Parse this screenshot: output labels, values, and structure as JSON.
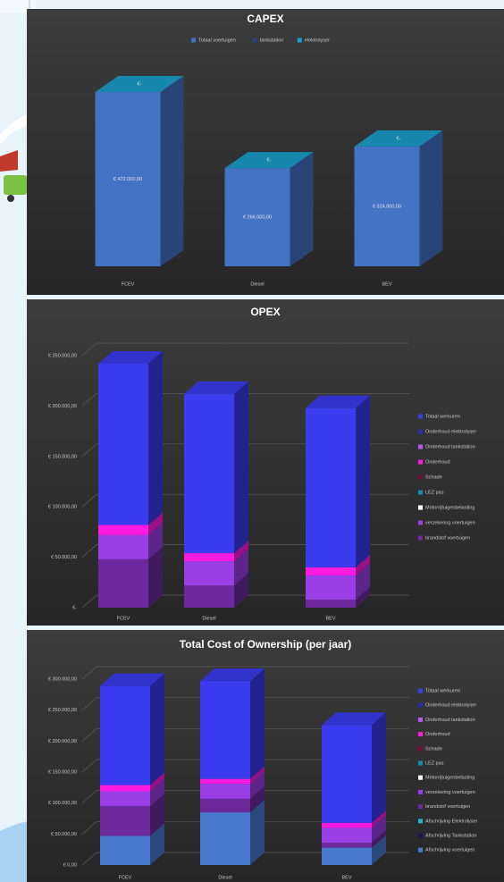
{
  "chart_data": [
    {
      "type": "bar",
      "stacked": true,
      "title": "CAPEX",
      "legend": "top",
      "categories": [
        "FCEV",
        "Diesel",
        "BEV"
      ],
      "series": [
        {
          "name": "Totaal voertuigen",
          "color": "#4472c4",
          "values": [
            472000,
            266000,
            324800
          ],
          "value_labels": [
            "€ 472.000,00",
            "€ 266.000,00",
            "€ 324.800,00"
          ]
        },
        {
          "name": "tankstation",
          "color": "#2b3f80",
          "values": [
            0,
            0,
            0
          ],
          "value_labels": [
            "€-",
            "€-",
            "€-"
          ]
        },
        {
          "name": "elektrolyser",
          "color": "#1ba0cc",
          "values": [
            0,
            0,
            0
          ]
        }
      ]
    },
    {
      "type": "bar",
      "stacked": true,
      "title": "OPEX",
      "legend": "right",
      "grid": true,
      "categories": [
        "FCEV",
        "Diesel",
        "BEV"
      ],
      "ylim": [
        0,
        250000
      ],
      "yticks": [
        {
          "value": 0,
          "label": "€-"
        },
        {
          "value": 50000,
          "label": "€ 50.000,00"
        },
        {
          "value": 100000,
          "label": "€ 100.000,00"
        },
        {
          "value": 150000,
          "label": "€ 150.000,00"
        },
        {
          "value": 200000,
          "label": "€ 200.000,00"
        },
        {
          "value": 250000,
          "label": "€ 250.000,00"
        }
      ],
      "series": [
        {
          "name": "brandstof voertuigen",
          "color": "#6c2a9e",
          "values": [
            48000,
            22000,
            8000
          ]
        },
        {
          "name": "verzekering voertuigen",
          "color": "#9a3ee6",
          "values": [
            24000,
            24000,
            24000
          ]
        },
        {
          "name": "Motorrijtuigenbelasting",
          "color": "#ffffff",
          "values": [
            0,
            0,
            0
          ]
        },
        {
          "name": "LEZ pas",
          "color": "#1a8ab0",
          "values": [
            0,
            0,
            0
          ]
        },
        {
          "name": "Schade",
          "color": "#7a0a40",
          "values": [
            0,
            0,
            0
          ]
        },
        {
          "name": "Onderhoud",
          "color": "#ff1ae0",
          "values": [
            10000,
            8000,
            8000
          ]
        },
        {
          "name": "Onderhoud tankstation",
          "color": "#b45af0",
          "values": [
            0,
            0,
            0
          ]
        },
        {
          "name": "Onderhoud elektrolyser",
          "color": "#2a2ab0",
          "values": [
            0,
            0,
            0
          ]
        },
        {
          "name": "Totaal werkuren",
          "color": "#3b3bf0",
          "values": [
            160000,
            158000,
            158000
          ]
        }
      ]
    },
    {
      "type": "bar",
      "stacked": true,
      "title": "Total Cost of Ownership (per jaar)",
      "legend": "right",
      "grid": true,
      "categories": [
        "FCEV",
        "Diesel",
        "BEV"
      ],
      "ylim": [
        0,
        300000
      ],
      "yticks": [
        {
          "value": 0,
          "label": "€ 0,00"
        },
        {
          "value": 50000,
          "label": "€ 50.000,00"
        },
        {
          "value": 100000,
          "label": "€ 100.000,00"
        },
        {
          "value": 150000,
          "label": "€ 150.000,00"
        },
        {
          "value": 200000,
          "label": "€ 200.000,00"
        },
        {
          "value": 250000,
          "label": "€ 250.000,00"
        },
        {
          "value": 300000,
          "label": "€ 300.000,00"
        }
      ],
      "series": [
        {
          "name": "Afschrijving voertuigen",
          "color": "#4a7ad0",
          "values": [
            47000,
            85000,
            28000
          ]
        },
        {
          "name": "Afschrijving Tankstation",
          "color": "#1a1a5a",
          "values": [
            0,
            0,
            0
          ]
        },
        {
          "name": "Afschrijving Elektrolyser",
          "color": "#2ab0c0",
          "values": [
            0,
            0,
            0
          ]
        },
        {
          "name": "brandstof voertuigen",
          "color": "#6c2a9e",
          "values": [
            48000,
            22000,
            8000
          ]
        },
        {
          "name": "verzekering voertuigen",
          "color": "#9a3ee6",
          "values": [
            24000,
            24000,
            24000
          ]
        },
        {
          "name": "Motorrijtuigenbelasting",
          "color": "#ffffff",
          "values": [
            0,
            0,
            0
          ]
        },
        {
          "name": "LEZ pas",
          "color": "#1a8ab0",
          "values": [
            0,
            0,
            0
          ]
        },
        {
          "name": "Schade",
          "color": "#7a0a40",
          "values": [
            0,
            0,
            0
          ]
        },
        {
          "name": "Onderhoud",
          "color": "#ff1ae0",
          "values": [
            10000,
            8000,
            8000
          ]
        },
        {
          "name": "Onderhoud tankstation",
          "color": "#b45af0",
          "values": [
            0,
            0,
            0
          ]
        },
        {
          "name": "Onderhoud elektrolyser",
          "color": "#2a2ab0",
          "values": [
            0,
            0,
            0
          ]
        },
        {
          "name": "Totaal werkuren",
          "color": "#3b3bf0",
          "values": [
            160000,
            158000,
            158000
          ]
        }
      ]
    }
  ]
}
